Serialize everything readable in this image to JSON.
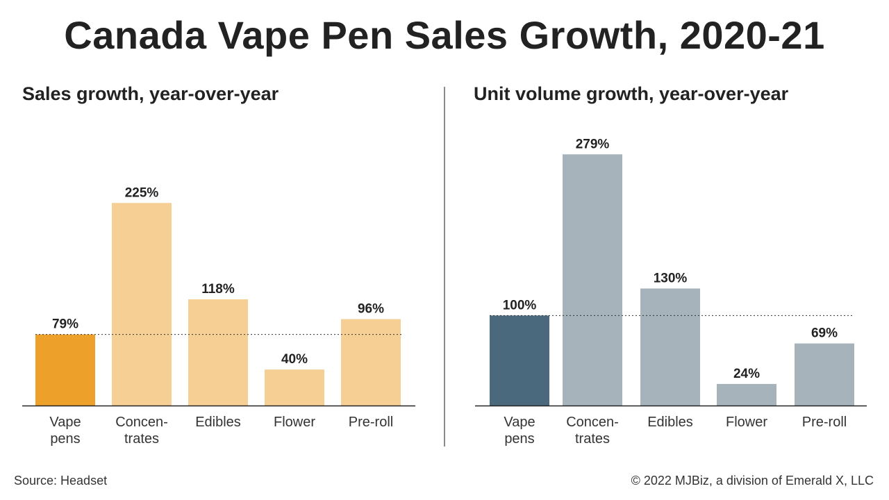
{
  "title": "Canada Vape Pen Sales Growth, 2020-21",
  "footer": {
    "source": "Source: Headset",
    "copyright": "© 2022 MJBiz, a division of Emerald X, LLC"
  },
  "chart_data": [
    {
      "type": "bar",
      "title": "Sales growth, year-over-year",
      "categories": [
        [
          "Vape",
          "pens"
        ],
        [
          "Concen-",
          "trates"
        ],
        [
          "Edibles"
        ],
        [
          "Flower"
        ],
        [
          "Pre-roll"
        ]
      ],
      "values": [
        79,
        225,
        118,
        40,
        96
      ],
      "value_labels": [
        "79%",
        "225%",
        "118%",
        "40%",
        "96%"
      ],
      "unit": "%",
      "reference_line": 79,
      "ylim": [
        0,
        290
      ],
      "colors": [
        "#EDA02A",
        "#F5CF94",
        "#F5CF94",
        "#F5CF94",
        "#F5CF94"
      ],
      "grid": false
    },
    {
      "type": "bar",
      "title": "Unit volume growth, year-over-year",
      "categories": [
        [
          "Vape",
          "pens"
        ],
        [
          "Concen-",
          "trates"
        ],
        [
          "Edibles"
        ],
        [
          "Flower"
        ],
        [
          "Pre-roll"
        ]
      ],
      "values": [
        100,
        279,
        130,
        24,
        69
      ],
      "value_labels": [
        "100%",
        "279%",
        "130%",
        "24%",
        "69%"
      ],
      "unit": "%",
      "reference_line": 100,
      "ylim": [
        0,
        290
      ],
      "colors": [
        "#4A697D",
        "#A6B3BB",
        "#A6B3BB",
        "#A6B3BB",
        "#A6B3BB"
      ],
      "grid": false
    }
  ]
}
